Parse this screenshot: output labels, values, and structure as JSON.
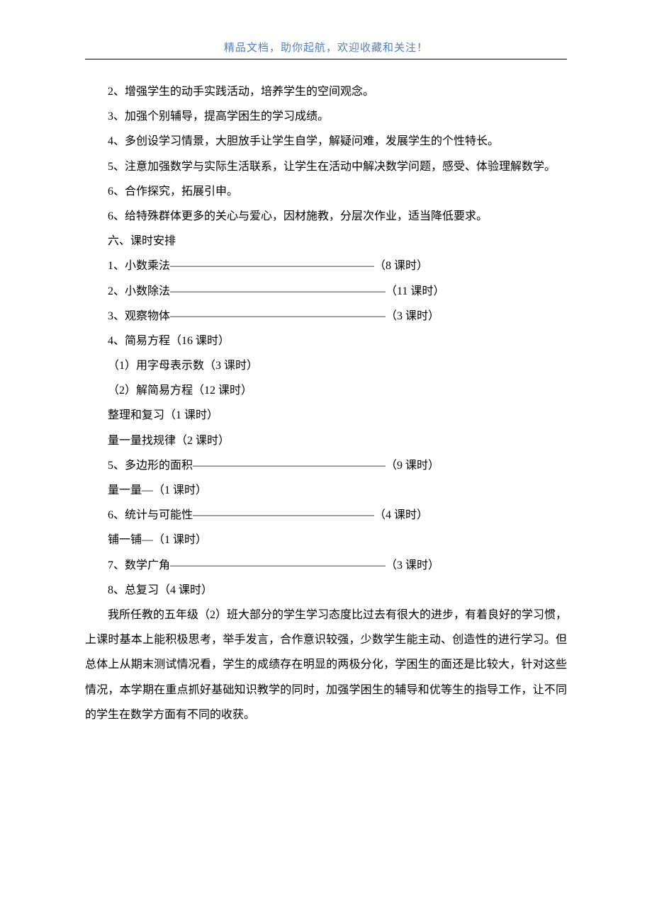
{
  "banner": {
    "text": "精品文档，助你起航，欢迎收藏和关注！",
    "color": "#4f7fc6",
    "fontsize_pt": 11
  },
  "body_text": {
    "color": "#000000",
    "fontsize_pt": 12,
    "line_height": 2.2,
    "indent_em": 2
  },
  "lines": {
    "l2": "2、增强学生的动手实践活动，培养学生的空间观念。",
    "l3": "3、加强个别辅导，提高学困生的学习成绩。",
    "l4": "4、多创设学习情景，大胆放手让学生自学，解疑问难，发展学生的个性特长。",
    "l5": "5、注意加强数学与实际生活联系，让学生在活动中解决数学问题，感受、体验理解数学。",
    "l6a": "6、合作探究，拓展引申。",
    "l6b": "6、给特殊群体更多的关心与爱心，因材施教，分层次作业，适当降低要求。",
    "sec6": "六、课时安排",
    "c1": "1、小数乘法——————————————————（8 课时）",
    "c2": "2、小数除法———————————————————（11 课时）",
    "c3": "3、观察物体———————————————————（3 课时）",
    "c4": "4、简易方程（16 课时）",
    "c4_1": "（1）用字母表示数（3 课时）",
    "c4_2": "（2）解简易方程（12 课时）",
    "c_rev": "整理和复习（1 课时）",
    "c_meas": "量一量找规律（2 课时）",
    "c5": "5、多边形的面积—————————————————（9 课时）",
    "c_m1": "量一量—（1 课时）",
    "c6": "6、统计与可能性————————————————（4 课时）",
    "c_pu": "铺一铺—（1 课时）",
    "c7": "7、数学广角———————————————————（3 课时）",
    "c8": "8、总复习（4 课时）",
    "tail": "我所任教的五年级（2）班大部分的学生学习态度比过去有很大的进步，有着良好的学习惯，上课时基本上能积极思考，举手发言，合作意识较强，少数学生能主动、创造性的进行学习。但总体上从期末测试情况看，学生的成绩存在明显的两极分化，学困生的面还是比较大，针对这些情况，本学期在重点抓好基础知识教学的同时，加强学困生的辅导和优等生的指导工作，让不同的学生在数学方面有不同的收获。"
  }
}
